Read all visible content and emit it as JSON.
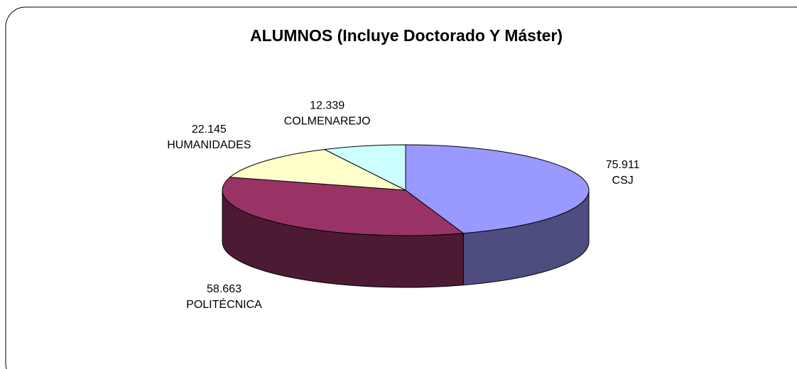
{
  "chart_data": {
    "type": "pie3d",
    "title": "ALUMNOS (Incluye Doctorado Y Máster)",
    "categories": [
      "CSJ",
      "POLITÉCNICA",
      "HUMANIDADES",
      "COLMENAREJO"
    ],
    "values": [
      75911,
      58663,
      22145,
      12339
    ],
    "value_labels": [
      "75.911",
      "58.663",
      "22.145",
      "12.339"
    ],
    "colors": [
      "#9999ff",
      "#993366",
      "#ffffcc",
      "#ccffff"
    ]
  }
}
